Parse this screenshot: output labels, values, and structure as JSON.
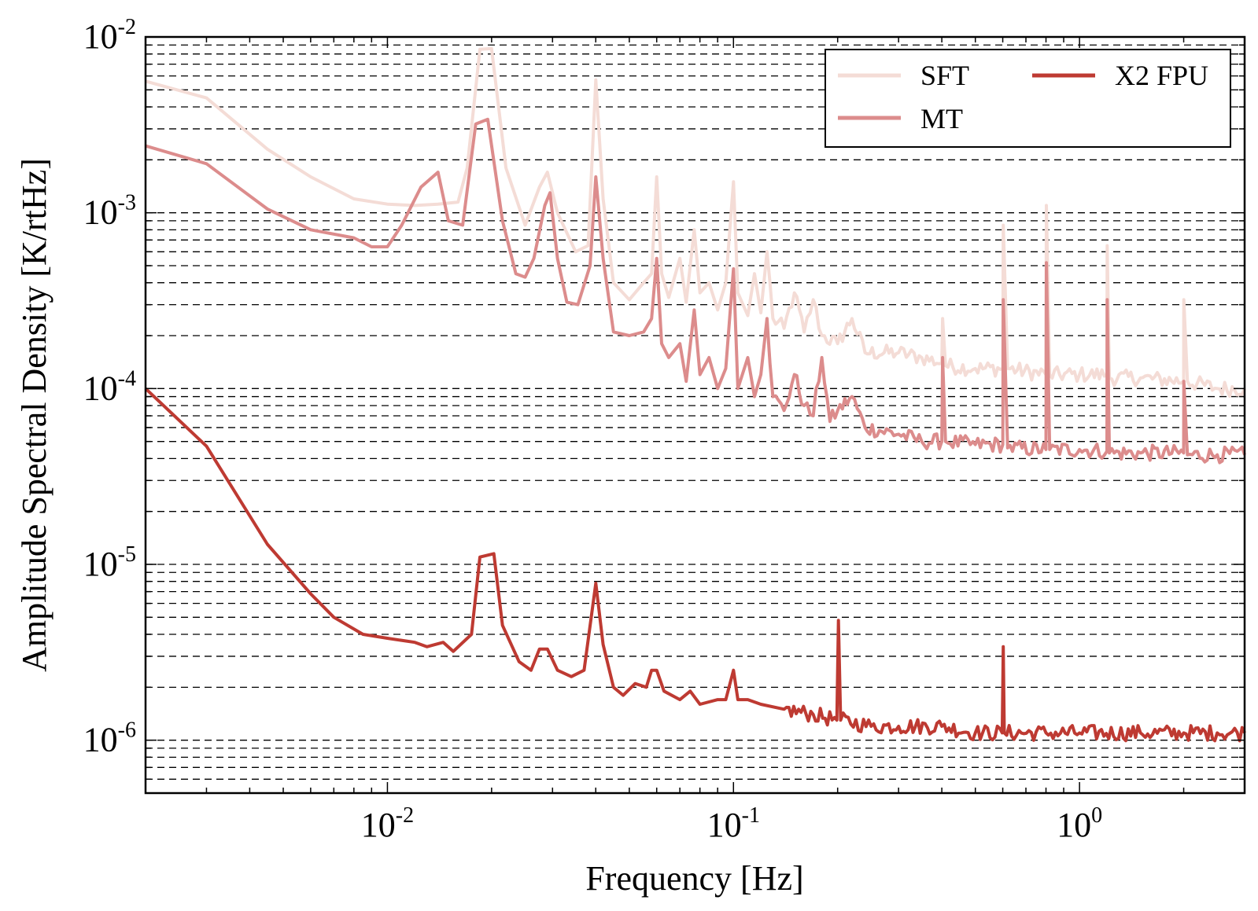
{
  "chart_data": {
    "type": "line",
    "xlabel": "Frequency [Hz]",
    "ylabel": "Amplitude Spectral Density [K/rtHz]",
    "xscale": "log",
    "yscale": "log",
    "xlim": [
      0.002,
      3.0
    ],
    "ylim": [
      5e-07,
      0.01
    ],
    "grid": "dashed horizontal at major and minor y ticks",
    "x_ticks": [
      {
        "value": 0.01,
        "base": "10",
        "exp": "-2"
      },
      {
        "value": 0.1,
        "base": "10",
        "exp": "-1"
      },
      {
        "value": 1,
        "base": "10",
        "exp": "0"
      }
    ],
    "y_ticks": [
      {
        "value": 0.01,
        "base": "10",
        "exp": "-2"
      },
      {
        "value": 0.001,
        "base": "10",
        "exp": "-3"
      },
      {
        "value": 0.0001,
        "base": "10",
        "exp": "-4"
      },
      {
        "value": 1e-05,
        "base": "10",
        "exp": "-5"
      },
      {
        "value": 1e-06,
        "base": "10",
        "exp": "-6"
      }
    ],
    "legend": {
      "position": "top-right",
      "columns": 2
    },
    "series": [
      {
        "name": "SFT",
        "color": "#f4dcd6",
        "points": [
          [
            0.002,
            0.0056
          ],
          [
            0.003,
            0.0045
          ],
          [
            0.0045,
            0.0023
          ],
          [
            0.006,
            0.0016
          ],
          [
            0.008,
            0.0012
          ],
          [
            0.01,
            0.00112
          ],
          [
            0.012,
            0.0011
          ],
          [
            0.014,
            0.00112
          ],
          [
            0.016,
            0.00115
          ],
          [
            0.017,
            0.0018
          ],
          [
            0.0185,
            0.0085
          ],
          [
            0.02,
            0.0086
          ],
          [
            0.022,
            0.0018
          ],
          [
            0.025,
            0.00085
          ],
          [
            0.0275,
            0.0014
          ],
          [
            0.029,
            0.0017
          ],
          [
            0.031,
            0.001
          ],
          [
            0.035,
            0.0006
          ],
          [
            0.038,
            0.00065
          ],
          [
            0.04,
            0.0057
          ],
          [
            0.042,
            0.0012
          ],
          [
            0.045,
            0.0004
          ],
          [
            0.05,
            0.00032
          ],
          [
            0.055,
            0.0004
          ],
          [
            0.058,
            0.00045
          ],
          [
            0.06,
            0.0016
          ],
          [
            0.062,
            0.00045
          ],
          [
            0.065,
            0.00033
          ],
          [
            0.07,
            0.00055
          ],
          [
            0.073,
            0.00031
          ],
          [
            0.077,
            0.0008
          ],
          [
            0.08,
            0.00035
          ],
          [
            0.085,
            0.0004
          ],
          [
            0.09,
            0.00028
          ],
          [
            0.095,
            0.0004
          ],
          [
            0.1,
            0.0015
          ],
          [
            0.103,
            0.00035
          ],
          [
            0.11,
            0.00026
          ],
          [
            0.115,
            0.00045
          ],
          [
            0.12,
            0.00027
          ],
          [
            0.125,
            0.0006
          ],
          [
            0.13,
            0.00025
          ],
          [
            0.14,
            0.00022
          ],
          [
            0.15,
            0.00035
          ],
          [
            0.16,
            0.00021
          ],
          [
            0.17,
            0.00032
          ],
          [
            0.18,
            0.0002
          ],
          [
            0.2,
            0.00018
          ],
          [
            0.22,
            0.00025
          ],
          [
            0.24,
            0.00016
          ],
          [
            0.3,
            0.00016
          ],
          [
            0.35,
            0.00015
          ],
          [
            0.4,
            0.00014
          ],
          [
            0.402,
            0.00025
          ],
          [
            0.41,
            0.000135
          ],
          [
            0.5,
            0.00013
          ],
          [
            0.6,
            0.00013
          ],
          [
            0.602,
            0.00085
          ],
          [
            0.62,
            0.00013
          ],
          [
            0.8,
            0.00012
          ],
          [
            0.802,
            0.0011
          ],
          [
            0.82,
            0.00012
          ],
          [
            1.0,
            0.00012
          ],
          [
            1.2,
            0.00012
          ],
          [
            1.202,
            0.00065
          ],
          [
            1.22,
            0.000115
          ],
          [
            1.5,
            0.000115
          ],
          [
            2.0,
            0.00011
          ],
          [
            2.002,
            0.00032
          ],
          [
            2.05,
            0.00011
          ],
          [
            2.5,
            0.0001
          ],
          [
            3.0,
            0.0001
          ]
        ]
      },
      {
        "name": "MT",
        "color": "#dc8c8c",
        "points": [
          [
            0.002,
            0.0024
          ],
          [
            0.003,
            0.0019
          ],
          [
            0.0045,
            0.00105
          ],
          [
            0.006,
            0.0008
          ],
          [
            0.008,
            0.00072
          ],
          [
            0.009,
            0.00064
          ],
          [
            0.01,
            0.00064
          ],
          [
            0.011,
            0.00085
          ],
          [
            0.0125,
            0.0014
          ],
          [
            0.014,
            0.0017
          ],
          [
            0.015,
            0.0009
          ],
          [
            0.0165,
            0.00085
          ],
          [
            0.018,
            0.0032
          ],
          [
            0.0195,
            0.0034
          ],
          [
            0.0215,
            0.0009
          ],
          [
            0.0235,
            0.00045
          ],
          [
            0.025,
            0.00043
          ],
          [
            0.0265,
            0.00055
          ],
          [
            0.0285,
            0.0011
          ],
          [
            0.0295,
            0.0013
          ],
          [
            0.031,
            0.00055
          ],
          [
            0.033,
            0.00031
          ],
          [
            0.0355,
            0.0003
          ],
          [
            0.0385,
            0.0005
          ],
          [
            0.04,
            0.0016
          ],
          [
            0.042,
            0.00055
          ],
          [
            0.045,
            0.00021
          ],
          [
            0.05,
            0.0002
          ],
          [
            0.055,
            0.00021
          ],
          [
            0.058,
            0.00025
          ],
          [
            0.06,
            0.00055
          ],
          [
            0.062,
            0.00018
          ],
          [
            0.065,
            0.00015
          ],
          [
            0.07,
            0.00018
          ],
          [
            0.073,
            0.00011
          ],
          [
            0.077,
            0.00028
          ],
          [
            0.08,
            0.00012
          ],
          [
            0.085,
            0.00015
          ],
          [
            0.09,
            0.0001
          ],
          [
            0.095,
            0.00013
          ],
          [
            0.1,
            0.00048
          ],
          [
            0.103,
            0.0001
          ],
          [
            0.11,
            0.00015
          ],
          [
            0.115,
            9e-05
          ],
          [
            0.12,
            0.00012
          ],
          [
            0.125,
            0.00025
          ],
          [
            0.13,
            9e-05
          ],
          [
            0.14,
            7.5e-05
          ],
          [
            0.15,
            0.00012
          ],
          [
            0.16,
            8e-05
          ],
          [
            0.17,
            7e-05
          ],
          [
            0.18,
            0.00015
          ],
          [
            0.19,
            6.5e-05
          ],
          [
            0.2,
            7.5e-05
          ],
          [
            0.22,
            9e-05
          ],
          [
            0.24,
            6e-05
          ],
          [
            0.3,
            5.5e-05
          ],
          [
            0.35,
            5e-05
          ],
          [
            0.4,
            5e-05
          ],
          [
            0.402,
            0.00015
          ],
          [
            0.41,
            5e-05
          ],
          [
            0.5,
            4.8e-05
          ],
          [
            0.6,
            4.8e-05
          ],
          [
            0.602,
            0.00032
          ],
          [
            0.62,
            4.6e-05
          ],
          [
            0.8,
            4.5e-05
          ],
          [
            0.802,
            0.00052
          ],
          [
            0.82,
            4.5e-05
          ],
          [
            1.0,
            4.5e-05
          ],
          [
            1.2,
            4.4e-05
          ],
          [
            1.202,
            0.00032
          ],
          [
            1.22,
            4.3e-05
          ],
          [
            1.5,
            4.3e-05
          ],
          [
            2.0,
            4.3e-05
          ],
          [
            2.002,
            0.00011
          ],
          [
            2.05,
            4.2e-05
          ],
          [
            2.5,
            4.2e-05
          ],
          [
            3.0,
            4.2e-05
          ]
        ]
      },
      {
        "name": "X2 FPU",
        "color": "#be3a32",
        "points": [
          [
            0.002,
            0.0001
          ],
          [
            0.003,
            4.7e-05
          ],
          [
            0.0045,
            1.3e-05
          ],
          [
            0.006,
            6.8e-06
          ],
          [
            0.007,
            5e-06
          ],
          [
            0.0085,
            4e-06
          ],
          [
            0.01,
            3.8e-06
          ],
          [
            0.012,
            3.6e-06
          ],
          [
            0.013,
            3.4e-06
          ],
          [
            0.0145,
            3.6e-06
          ],
          [
            0.0155,
            3.2e-06
          ],
          [
            0.0175,
            4e-06
          ],
          [
            0.0185,
            1.1e-05
          ],
          [
            0.0203,
            1.15e-05
          ],
          [
            0.0215,
            4.5e-06
          ],
          [
            0.024,
            2.8e-06
          ],
          [
            0.026,
            2.5e-06
          ],
          [
            0.0275,
            3.3e-06
          ],
          [
            0.029,
            3.3e-06
          ],
          [
            0.031,
            2.5e-06
          ],
          [
            0.034,
            2.3e-06
          ],
          [
            0.037,
            2.5e-06
          ],
          [
            0.04,
            7.8e-06
          ],
          [
            0.042,
            3.5e-06
          ],
          [
            0.045,
            2e-06
          ],
          [
            0.048,
            1.8e-06
          ],
          [
            0.052,
            2.1e-06
          ],
          [
            0.056,
            2e-06
          ],
          [
            0.058,
            2.5e-06
          ],
          [
            0.06,
            2.5e-06
          ],
          [
            0.063,
            1.9e-06
          ],
          [
            0.07,
            1.7e-06
          ],
          [
            0.075,
            1.9e-06
          ],
          [
            0.08,
            1.6e-06
          ],
          [
            0.09,
            1.7e-06
          ],
          [
            0.095,
            1.7e-06
          ],
          [
            0.1,
            2.5e-06
          ],
          [
            0.103,
            1.7e-06
          ],
          [
            0.11,
            1.7e-06
          ],
          [
            0.12,
            1.6e-06
          ],
          [
            0.14,
            1.5e-06
          ],
          [
            0.17,
            1.4e-06
          ],
          [
            0.199,
            1.3e-06
          ],
          [
            0.201,
            4.8e-06
          ],
          [
            0.204,
            1.3e-06
          ],
          [
            0.25,
            1.2e-06
          ],
          [
            0.3,
            1.2e-06
          ],
          [
            0.4,
            1.2e-06
          ],
          [
            0.5,
            1.1e-06
          ],
          [
            0.598,
            1.1e-06
          ],
          [
            0.602,
            3.4e-06
          ],
          [
            0.606,
            1.1e-06
          ],
          [
            0.8,
            1.1e-06
          ],
          [
            1.0,
            1.1e-06
          ],
          [
            1.5,
            1.1e-06
          ],
          [
            2.0,
            1.1e-06
          ],
          [
            2.5,
            1.1e-06
          ],
          [
            3.0,
            1.1e-06
          ]
        ]
      }
    ]
  }
}
